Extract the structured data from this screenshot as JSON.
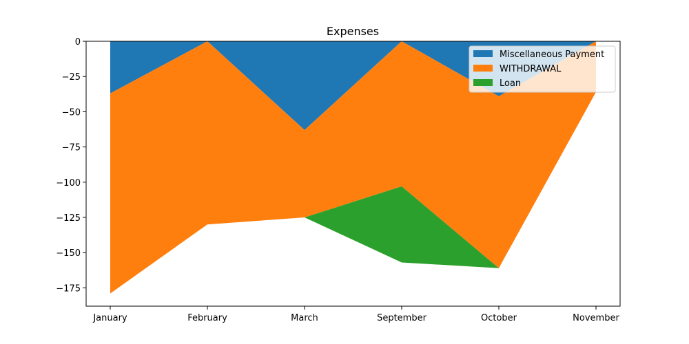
{
  "chart_data": {
    "type": "area",
    "stacked": true,
    "title": "Expenses",
    "xlabel": "",
    "ylabel": "",
    "categories": [
      "January",
      "February",
      "March",
      "September",
      "October",
      "November"
    ],
    "series": [
      {
        "name": "Miscellaneous Payment",
        "color": "#1f77b4",
        "values": [
          -37,
          0,
          -63,
          0,
          -39,
          0
        ]
      },
      {
        "name": "WITHDRAWAL",
        "color": "#ff7f0e",
        "values": [
          -142,
          -130,
          -62,
          -103,
          -122,
          -36
        ]
      },
      {
        "name": "Loan",
        "color": "#2ca02c",
        "values": [
          0,
          0,
          0,
          -54,
          0,
          0
        ]
      }
    ],
    "ylim": [
      -188,
      0
    ],
    "yticks": [
      0,
      -25,
      -50,
      -75,
      -100,
      -125,
      -150,
      -175
    ],
    "grid": false,
    "legend_position": "top-right"
  }
}
